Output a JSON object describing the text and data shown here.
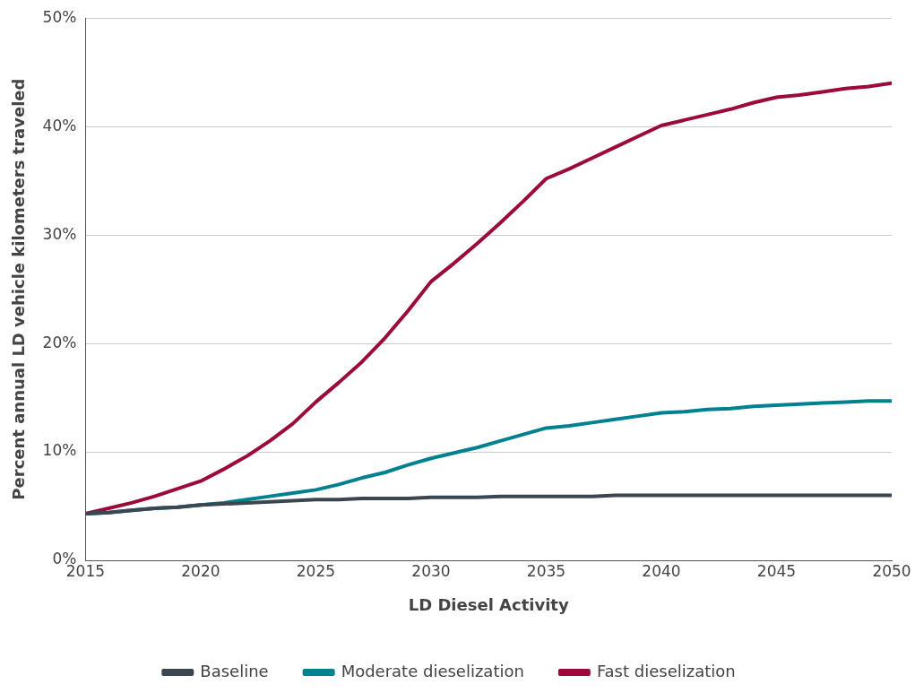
{
  "chart_data": {
    "type": "line",
    "xlabel": "LD Diesel Activity",
    "ylabel": "Percent annual LD vehicle kilometers traveled",
    "x": [
      2015,
      2016,
      2017,
      2018,
      2019,
      2020,
      2021,
      2022,
      2023,
      2024,
      2025,
      2026,
      2027,
      2028,
      2029,
      2030,
      2031,
      2032,
      2033,
      2034,
      2035,
      2036,
      2037,
      2038,
      2039,
      2040,
      2041,
      2042,
      2043,
      2044,
      2045,
      2046,
      2047,
      2048,
      2049,
      2050
    ],
    "series": [
      {
        "name": "Baseline",
        "color": "#3c4650",
        "values": [
          4.3,
          4.4,
          4.6,
          4.8,
          4.9,
          5.1,
          5.2,
          5.3,
          5.4,
          5.5,
          5.6,
          5.6,
          5.7,
          5.7,
          5.7,
          5.8,
          5.8,
          5.8,
          5.9,
          5.9,
          5.9,
          5.9,
          5.9,
          6.0,
          6.0,
          6.0,
          6.0,
          6.0,
          6.0,
          6.0,
          6.0,
          6.0,
          6.0,
          6.0,
          6.0,
          6.0
        ]
      },
      {
        "name": "Moderate dieselization",
        "color": "#00818f",
        "values": [
          4.3,
          4.4,
          4.6,
          4.8,
          4.9,
          5.1,
          5.3,
          5.6,
          5.9,
          6.2,
          6.5,
          7.0,
          7.6,
          8.1,
          8.8,
          9.4,
          9.9,
          10.4,
          11.0,
          11.6,
          12.2,
          12.4,
          12.7,
          13.0,
          13.3,
          13.6,
          13.7,
          13.9,
          14.0,
          14.2,
          14.3,
          14.4,
          14.5,
          14.6,
          14.7,
          14.7
        ]
      },
      {
        "name": "Fast dieselization",
        "color": "#9b0a3a",
        "values": [
          4.3,
          4.8,
          5.3,
          5.9,
          6.6,
          7.3,
          8.4,
          9.6,
          11.0,
          12.6,
          14.6,
          16.4,
          18.3,
          20.5,
          23.0,
          25.7,
          27.4,
          29.2,
          31.1,
          33.1,
          35.2,
          36.1,
          37.1,
          38.1,
          39.1,
          40.1,
          40.6,
          41.1,
          41.6,
          42.2,
          42.7,
          42.9,
          43.2,
          43.5,
          43.7,
          44.0
        ]
      }
    ],
    "xlim": [
      2015,
      2050
    ],
    "xticks": [
      2015,
      2020,
      2025,
      2030,
      2035,
      2040,
      2045,
      2050
    ],
    "ylim": [
      0,
      50
    ],
    "yticks": [
      {
        "value": 0,
        "label": "0%"
      },
      {
        "value": 10,
        "label": "10%"
      },
      {
        "value": 20,
        "label": "20%"
      },
      {
        "value": 30,
        "label": "30%"
      },
      {
        "value": 40,
        "label": "40%"
      },
      {
        "value": 50,
        "label": "50%"
      }
    ],
    "grid": "y",
    "legend": "bottom",
    "marker": "none",
    "line_style": "solid"
  }
}
